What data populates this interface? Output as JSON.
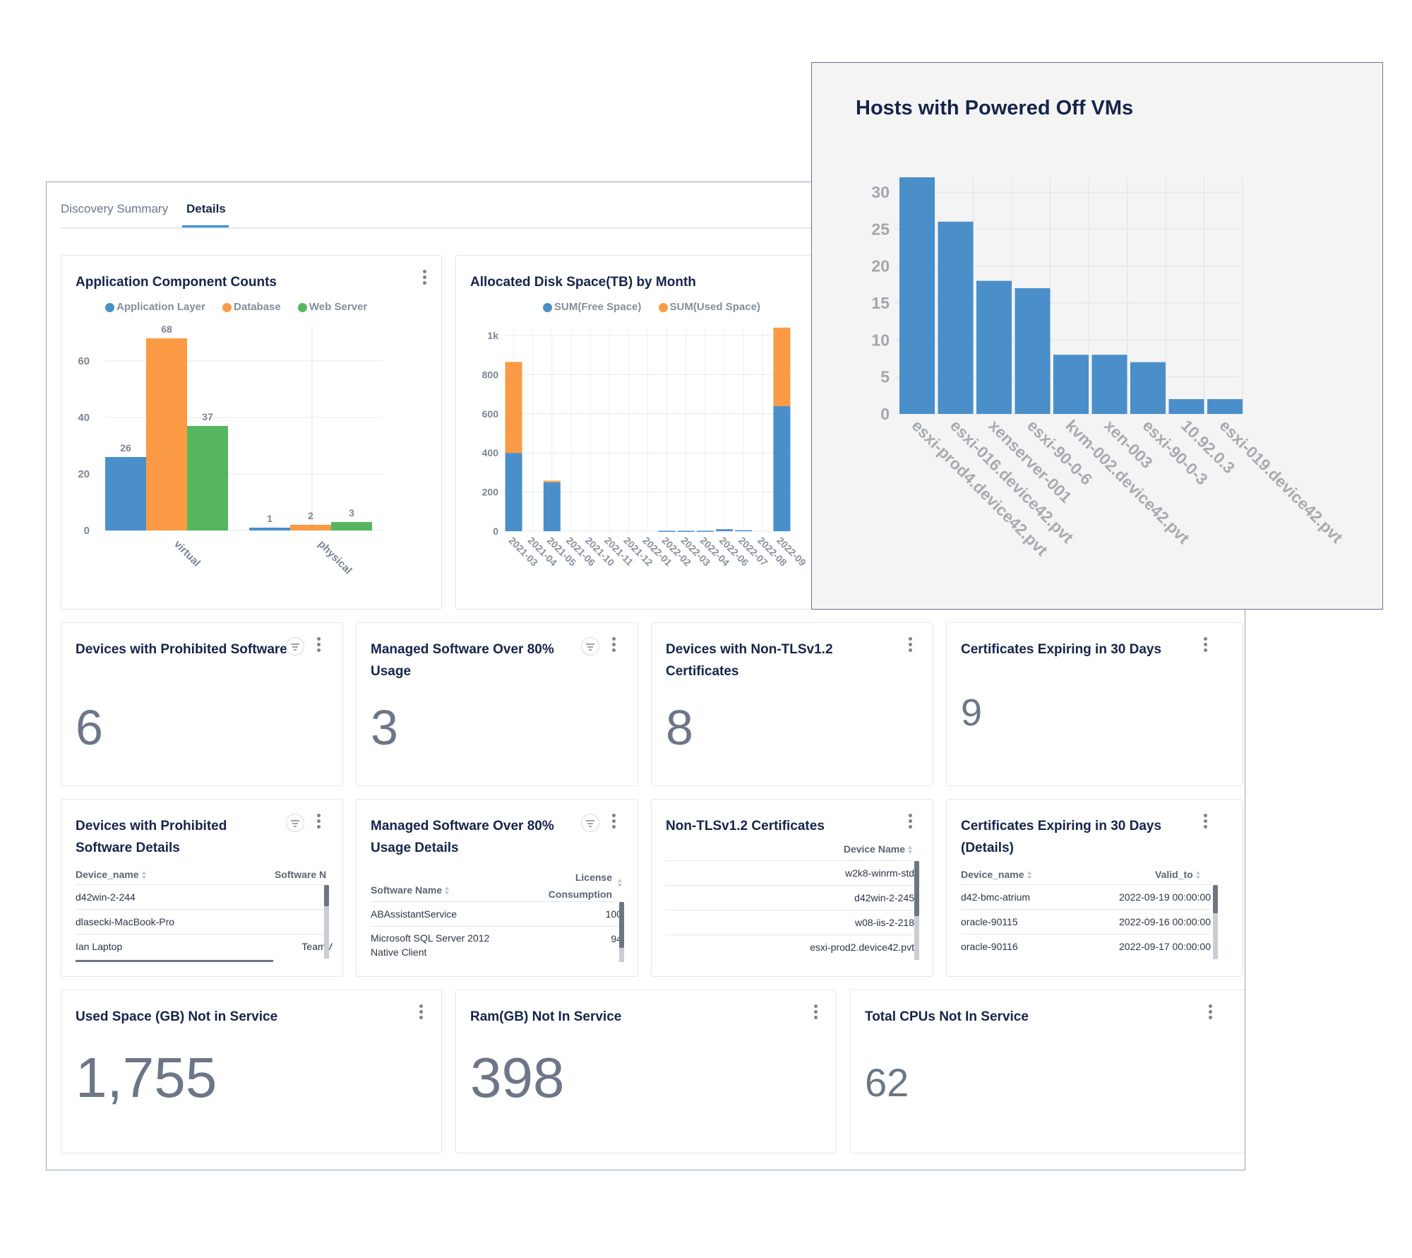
{
  "tabs": {
    "summary": "Discovery Summary",
    "details": "Details"
  },
  "app_components": {
    "title": "Application Component Counts",
    "legend": [
      "Application Layer",
      "Database",
      "Web Server"
    ]
  },
  "disk_space": {
    "title": "Allocated Disk Space(TB) by Month",
    "legend": [
      "SUM(Free Space)",
      "SUM(Used Space)"
    ]
  },
  "powered_off": {
    "title": "Hosts with Powered Off VMs"
  },
  "chart_data": [
    {
      "type": "bar",
      "title": "Application Component Counts",
      "categories": [
        "virtual",
        "physical"
      ],
      "series": [
        {
          "name": "Application Layer",
          "values": [
            26,
            1
          ],
          "color": "#4a8fc9"
        },
        {
          "name": "Database",
          "values": [
            68,
            2
          ],
          "color": "#fb9a44"
        },
        {
          "name": "Web Server",
          "values": [
            37,
            3
          ],
          "color": "#57b560"
        }
      ],
      "ylim": [
        0,
        70
      ],
      "yticks": [
        "0",
        "20",
        "40",
        "60"
      ],
      "data_labels": true,
      "legend_position": "top",
      "grid": true
    },
    {
      "type": "bar",
      "stacked": true,
      "title": "Allocated Disk Space(TB) by Month",
      "categories": [
        "2021-03",
        "2021-04",
        "2021-05",
        "2021-06",
        "2021-10",
        "2021-11",
        "2021-12",
        "2022-01",
        "2022-02",
        "2022-03",
        "2022-04",
        "2022-06",
        "2022-07",
        "2022-08",
        "2022-09"
      ],
      "series": [
        {
          "name": "SUM(Free Space)",
          "values": [
            400,
            0,
            250,
            0,
            0,
            0,
            0,
            0,
            2,
            2,
            2,
            10,
            5,
            0,
            640
          ],
          "color": "#4a8fc9"
        },
        {
          "name": "SUM(Used Space)",
          "values": [
            465,
            0,
            8,
            0,
            0,
            0,
            0,
            0,
            0,
            0,
            0,
            0,
            0,
            0,
            400
          ],
          "color": "#fb9a44"
        }
      ],
      "ylim": [
        0,
        1000
      ],
      "yticks": [
        "0",
        "200",
        "400",
        "600",
        "800",
        "1k"
      ],
      "legend_position": "top",
      "grid": true
    },
    {
      "type": "bar",
      "title": "Hosts with Powered Off VMs",
      "categories": [
        "esxi-prod4.device42.pvt",
        "esxi-016.device42.pvt",
        "xenserver-001",
        "esxi-90-0-6",
        "kvm-002.device42.pvt",
        "xen-003",
        "esxi-90-0-3",
        "10.92.0.3",
        "esxi-019.device42.pvt"
      ],
      "values": [
        32,
        26,
        18,
        17,
        8,
        8,
        7,
        2,
        2
      ],
      "ylim": [
        0,
        32
      ],
      "yticks": [
        "0",
        "5",
        "10",
        "15",
        "20",
        "25",
        "30"
      ],
      "color": "#4a8fc9",
      "grid": true
    }
  ],
  "kpis_row1": [
    {
      "title": "Devices with Prohibited Software",
      "value": "6"
    },
    {
      "title": "Managed Software Over 80% Usage",
      "value": "3"
    },
    {
      "title": "Devices with Non-TLSv1.2 Certificates",
      "value": "8"
    },
    {
      "title": "Certificates Expiring in 30 Days",
      "value": "9"
    }
  ],
  "tables": {
    "prohibited": {
      "title": "Devices with Prohibited Software Details",
      "col1": "Device_name",
      "col2": "Software N",
      "rows": [
        [
          "d42win-2-244",
          ""
        ],
        [
          "dlasecki-MacBook-Pro",
          ""
        ],
        [
          "Ian Laptop",
          "TeamV"
        ]
      ]
    },
    "managed": {
      "title": "Managed Software Over 80% Usage Details",
      "col1": "Software Name",
      "col2a": "License",
      "col2b": "Consumption",
      "rows": [
        [
          "ABAssistantService",
          "100"
        ],
        [
          "Microsoft SQL Server 2012",
          "94"
        ]
      ],
      "row2_line2": "Native Client"
    },
    "nontls": {
      "title": "Non-TLSv1.2 Certificates",
      "col1": "Device Name",
      "rows": [
        "w2k8-winrm-std",
        "d42win-2-245",
        "w08-iis-2-218",
        "esxi-prod2.device42.pvt"
      ]
    },
    "expiring": {
      "title": "Certificates Expiring in 30 Days (Details)",
      "col1": "Device_name",
      "col2": "Valid_to",
      "rows": [
        [
          "d42-bmc-atrium",
          "2022-09-19 00:00:00"
        ],
        [
          "oracle-90115",
          "2022-09-16 00:00:00"
        ],
        [
          "oracle-90116",
          "2022-09-17 00:00:00"
        ]
      ]
    }
  },
  "kpis_row3": [
    {
      "title": "Used Space (GB) Not in Service",
      "value": "1,755"
    },
    {
      "title": "Ram(GB) Not In Service",
      "value": "398"
    },
    {
      "title": "Total CPUs Not In Service",
      "value": "62"
    }
  ]
}
